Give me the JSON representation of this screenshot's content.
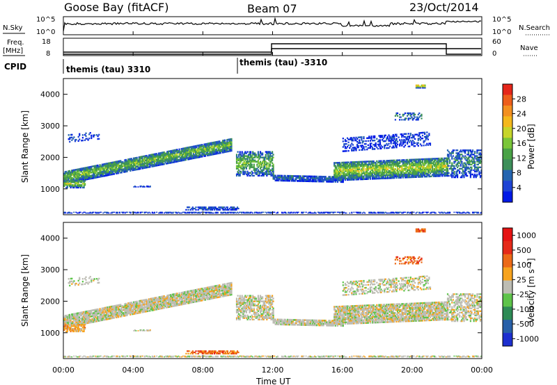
{
  "header": {
    "station": "Goose Bay (fitACF)",
    "beam": "Beam 07",
    "date": "23/Oct/2014"
  },
  "noise_panel": {
    "left_label": "N.Sky",
    "right_label": "N.Search",
    "left_ticks": [
      "10^5",
      "10^0"
    ],
    "right_ticks": [
      "10^5",
      "10^0"
    ]
  },
  "freq_panel": {
    "left_label_1": "Freq.",
    "left_label_2": "[MHz]",
    "right_label": "Nave",
    "left_ticks": [
      "18",
      "8"
    ],
    "right_ticks": [
      "60",
      "0"
    ]
  },
  "cpid_panel": {
    "label": "CPID",
    "segments": [
      {
        "text": "themis (tau) 3310",
        "start_hour": 0
      },
      {
        "text": "themis (tau) -3310",
        "start_hour": 10
      }
    ]
  },
  "x_axis": {
    "label": "Time UT",
    "ticks": [
      "00:00",
      "04:00",
      "08:00",
      "12:00",
      "16:00",
      "20:00",
      "00:00"
    ],
    "range_hours": [
      0,
      24
    ]
  },
  "chart_data": [
    {
      "type": "heatmap",
      "panel": "power",
      "ylabel": "Slant Range [km]",
      "ylim": [
        180,
        4500
      ],
      "yticks": [
        "1000",
        "2000",
        "3000",
        "4000"
      ],
      "colorbar": {
        "label": "Power [dB]",
        "ticks": [
          "4",
          "8",
          "12",
          "16",
          "20",
          "24",
          "28"
        ],
        "colors": [
          "#0019e6",
          "#1e44d4",
          "#2565b0",
          "#3d8f5a",
          "#49a246",
          "#7ac639",
          "#c6d52b",
          "#f4b81c",
          "#f39020",
          "#ed5e1b",
          "#e5261a"
        ]
      }
    },
    {
      "type": "heatmap",
      "panel": "velocity",
      "ylabel": "Slant Range [km]",
      "ylim": [
        180,
        4500
      ],
      "yticks": [
        "1000",
        "2000",
        "3000",
        "4000"
      ],
      "colorbar": {
        "label": "Velocity [m s⁻¹]",
        "ticks": [
          "1000",
          "500",
          "100",
          "25",
          "-25",
          "-100",
          "-500",
          "-1000"
        ],
        "colors": [
          "#1d2fcf",
          "#2860a8",
          "#2e8b56",
          "#5ec44a",
          "#bdbdb4",
          "#f7a31e",
          "#ec6a18",
          "#e52a19",
          "#e51313"
        ]
      }
    }
  ]
}
